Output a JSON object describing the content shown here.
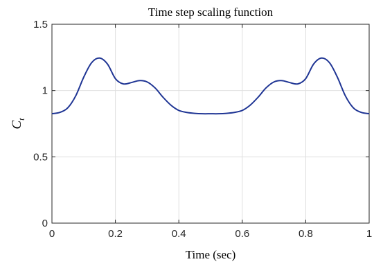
{
  "chart_data": {
    "type": "line",
    "title": "Time step scaling function",
    "xlabel": "Time (sec)",
    "ylabel_main": "C",
    "ylabel_sub": "t",
    "xlim": [
      0,
      1
    ],
    "ylim": [
      0,
      1.5
    ],
    "grid": true,
    "x_ticks": [
      0,
      0.2,
      0.4,
      0.6,
      0.8,
      1
    ],
    "x_tick_labels": [
      "0",
      "0.2",
      "0.4",
      "0.6",
      "0.8",
      "1"
    ],
    "y_ticks": [
      0,
      0.5,
      1,
      1.5
    ],
    "y_tick_labels": [
      "0",
      "0.5",
      "1",
      "1.5"
    ],
    "series": [
      {
        "color": "#1f3594",
        "x": [
          0,
          0.025,
          0.05,
          0.075,
          0.1,
          0.125,
          0.15,
          0.175,
          0.2,
          0.225,
          0.25,
          0.275,
          0.3,
          0.325,
          0.35,
          0.375,
          0.4,
          0.425,
          0.45,
          0.475,
          0.5,
          0.525,
          0.55,
          0.575,
          0.6,
          0.625,
          0.65,
          0.675,
          0.7,
          0.725,
          0.75,
          0.775,
          0.8,
          0.825,
          0.85,
          0.875,
          0.9,
          0.925,
          0.95,
          0.975,
          1
        ],
        "y": [
          0.825,
          0.835,
          0.87,
          0.96,
          1.1,
          1.21,
          1.245,
          1.2,
          1.09,
          1.05,
          1.06,
          1.075,
          1.065,
          1.02,
          0.95,
          0.89,
          0.85,
          0.835,
          0.828,
          0.825,
          0.825,
          0.825,
          0.828,
          0.835,
          0.85,
          0.89,
          0.95,
          1.02,
          1.065,
          1.075,
          1.06,
          1.05,
          1.09,
          1.2,
          1.245,
          1.21,
          1.1,
          0.96,
          0.87,
          0.835,
          0.825
        ]
      }
    ]
  }
}
